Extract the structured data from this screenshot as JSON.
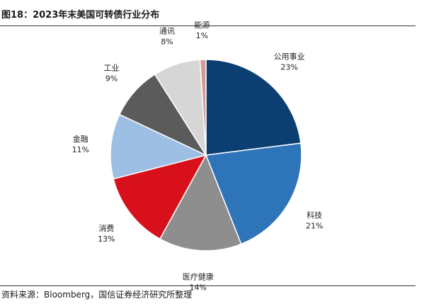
{
  "figure": {
    "title": "图18：2023年末美国可转债行业分布",
    "source": "资料来源：Bloomberg，国信证券经济研究所整理"
  },
  "chart_data": {
    "type": "pie",
    "title": "图18：2023年末美国可转债行业分布",
    "slices": [
      {
        "label": "公用事业",
        "value": 23,
        "value_label": "23%",
        "color": "#0b3f72"
      },
      {
        "label": "科技",
        "value": 21,
        "value_label": "21%",
        "color": "#2e74b8"
      },
      {
        "label": "医疗健康",
        "value": 14,
        "value_label": "14%",
        "color": "#8e8e8e"
      },
      {
        "label": "消费",
        "value": 13,
        "value_label": "13%",
        "color": "#d7101b"
      },
      {
        "label": "金融",
        "value": 11,
        "value_label": "11%",
        "color": "#9dbfe4"
      },
      {
        "label": "工业",
        "value": 9,
        "value_label": "9%",
        "color": "#5b5b5b"
      },
      {
        "label": "通讯",
        "value": 8,
        "value_label": "8%",
        "color": "#d6d6d6"
      },
      {
        "label": "能源",
        "value": 1,
        "value_label": "1%",
        "color": "#d49a94"
      }
    ],
    "start_angle_deg": 0,
    "direction": "clockwise",
    "legend": "none",
    "labels": "outside"
  }
}
